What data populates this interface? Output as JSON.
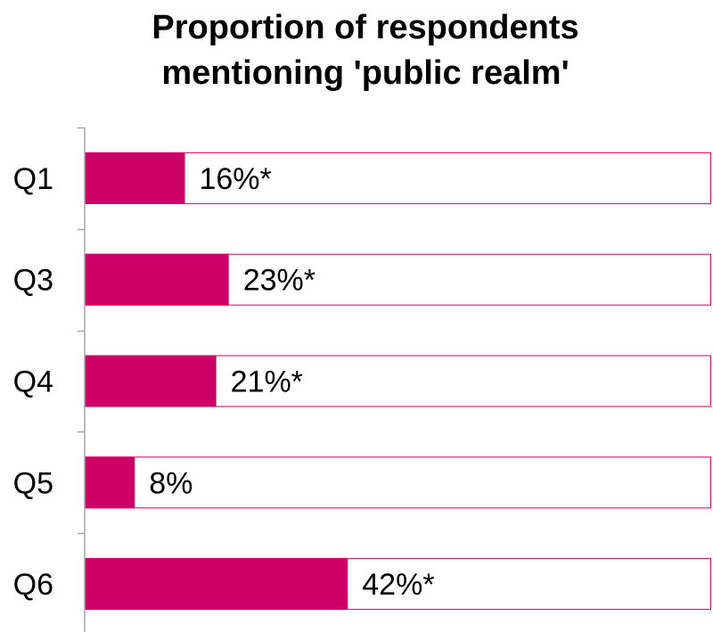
{
  "chart_data": {
    "type": "bar",
    "orientation": "horizontal",
    "title_lines": [
      "Proportion of respondents",
      "mentioning 'public realm'"
    ],
    "categories": [
      "Q1",
      "Q3",
      "Q4",
      "Q5",
      "Q6"
    ],
    "values": [
      16,
      23,
      21,
      8,
      42
    ],
    "data_labels": [
      "16%*",
      "23%*",
      "21%*",
      "8%",
      "42%*"
    ],
    "xlim": [
      0,
      100
    ],
    "unit": "%",
    "bar_color": "#cc0066",
    "track_border_color": "#cc0066",
    "grid": false,
    "legend": "none"
  }
}
